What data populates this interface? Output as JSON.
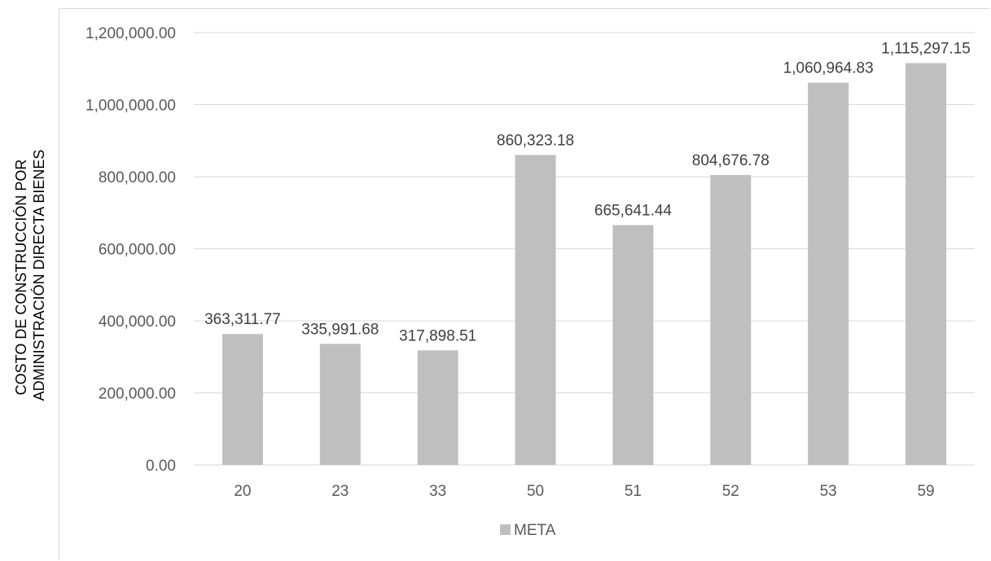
{
  "chart_data": {
    "type": "bar",
    "categories": [
      "20",
      "23",
      "33",
      "50",
      "51",
      "52",
      "53",
      "59"
    ],
    "series": [
      {
        "name": "META",
        "values": [
          363311.77,
          335991.68,
          317898.51,
          860323.18,
          665641.44,
          804676.78,
          1060964.83,
          1115297.15
        ],
        "labels": [
          "363,311.77",
          "335,991.68",
          "317,898.51",
          "860,323.18",
          "665,641.44",
          "804,676.78",
          "1,060,964.83",
          "1,115,297.15"
        ]
      }
    ],
    "ylabel_lines": [
      "COSTO DE CONSTRUCCIÓN POR",
      "ADMINISTRACIÓN DIRECTA BIENES"
    ],
    "ylim": [
      0,
      1200000
    ],
    "yticks": [
      "0.00",
      "200,000.00",
      "400,000.00",
      "600,000.00",
      "800,000.00",
      "1,000,000.00",
      "1,200,000.00"
    ],
    "grid": true,
    "legend_position": "bottom",
    "colors": {
      "bar": "#bfbfbf",
      "grid": "#d9d9d9"
    }
  }
}
